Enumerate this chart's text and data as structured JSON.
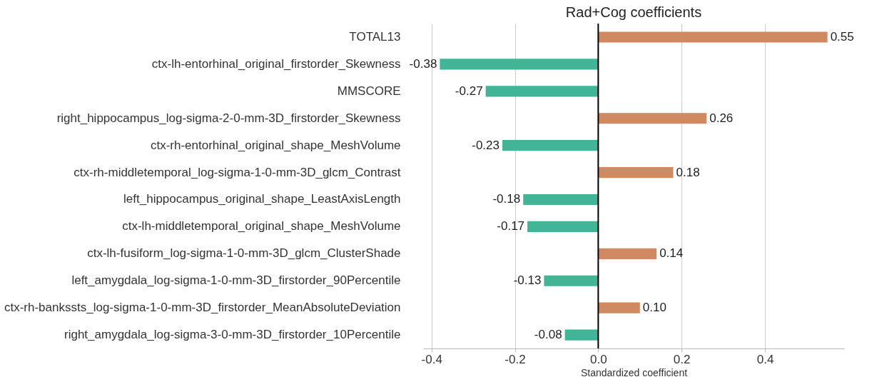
{
  "chart_data": {
    "type": "bar",
    "orientation": "horizontal",
    "title": "Rad+Cog coefficients",
    "xlabel": "Standardized coefficient",
    "categories": [
      "TOTAL13",
      "ctx-lh-entorhinal_original_firstorder_Skewness",
      "MMSCORE",
      "right_hippocampus_log-sigma-2-0-mm-3D_firstorder_Skewness",
      "ctx-rh-entorhinal_original_shape_MeshVolume",
      "ctx-rh-middletemporal_log-sigma-1-0-mm-3D_glcm_Contrast",
      "left_hippocampus_original_shape_LeastAxisLength",
      "ctx-lh-middletemporal_original_shape_MeshVolume",
      "ctx-lh-fusiform_log-sigma-1-0-mm-3D_glcm_ClusterShade",
      "left_amygdala_log-sigma-1-0-mm-3D_firstorder_90Percentile",
      "ctx-rh-bankssts_log-sigma-1-0-mm-3D_firstorder_MeanAbsoluteDeviation",
      "right_amygdala_log-sigma-3-0-mm-3D_firstorder_10Percentile"
    ],
    "values": [
      0.55,
      -0.38,
      -0.27,
      0.26,
      -0.23,
      0.18,
      -0.18,
      -0.17,
      0.14,
      -0.13,
      0.1,
      -0.08
    ],
    "value_labels": [
      "0.55",
      "-0.38",
      "-0.27",
      "0.26",
      "-0.23",
      "0.18",
      "-0.18",
      "-0.17",
      "0.14",
      "-0.13",
      "0.10",
      "-0.08"
    ],
    "colors": [
      "#d08a62",
      "#42b596",
      "#42b596",
      "#d08a62",
      "#42b596",
      "#d08a62",
      "#42b596",
      "#42b596",
      "#d08a62",
      "#42b596",
      "#d08a62",
      "#42b596"
    ],
    "xlim": [
      -0.42,
      0.59
    ],
    "xticks": [
      {
        "value": -0.4,
        "label": "-0.4"
      },
      {
        "value": -0.2,
        "label": "-0.2"
      },
      {
        "value": 0,
        "label": "0.0"
      },
      {
        "value": 0.2,
        "label": "0.2"
      },
      {
        "value": 0.4,
        "label": "0.4"
      }
    ],
    "grid": "x",
    "ref_lines": [
      {
        "axis": "x",
        "value": 0,
        "color": "#000000"
      }
    ]
  }
}
